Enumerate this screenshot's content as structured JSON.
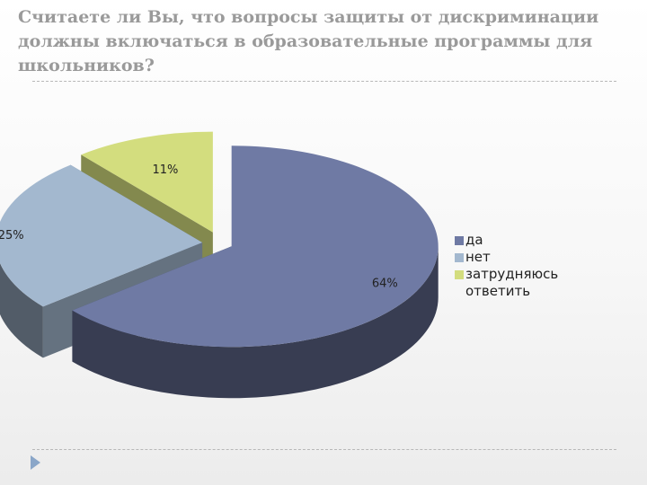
{
  "slide": {
    "title": "Считаете ли Вы, что вопросы защиты от дискриминации должны включаться в образовательные программы для школьников?"
  },
  "chart_data": {
    "type": "pie",
    "style": "3d-exploded",
    "categories": [
      "да",
      "нет",
      "затрудняюсь ответить"
    ],
    "values": [
      64,
      25,
      11
    ],
    "data_labels": [
      "64%",
      "25%",
      "11%"
    ],
    "colors": [
      "#6f7aa4",
      "#a3b8cf",
      "#d3dd7e"
    ],
    "legend_position": "right",
    "title": "",
    "xlabel": "",
    "ylabel": ""
  }
}
